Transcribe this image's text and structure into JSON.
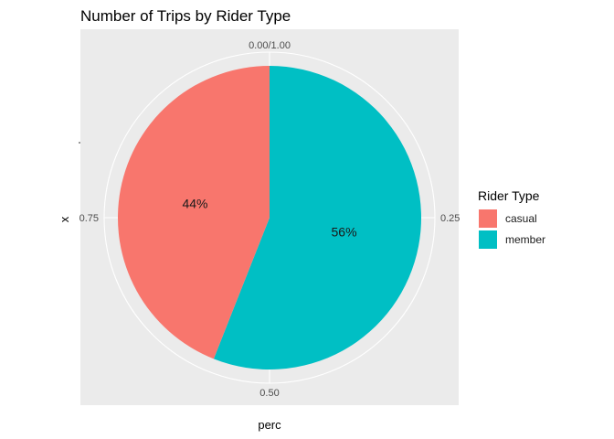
{
  "chart_data": {
    "type": "pie",
    "title": "Number of Trips by Rider Type",
    "xlabel": "perc",
    "ylabel": "x",
    "tick_labels": [
      "0.00/1.00",
      "0.25",
      "0.50",
      "0.75"
    ],
    "legend": {
      "title": "Rider Type",
      "position": "right"
    },
    "slices": [
      {
        "name": "casual",
        "value": 0.44,
        "label": "44%",
        "color": "#F8766D"
      },
      {
        "name": "member",
        "value": 0.56,
        "label": "56%",
        "color": "#00BFC4"
      }
    ],
    "panel_color": "#EBEBEB",
    "grid_color": "#FFFFFF"
  }
}
